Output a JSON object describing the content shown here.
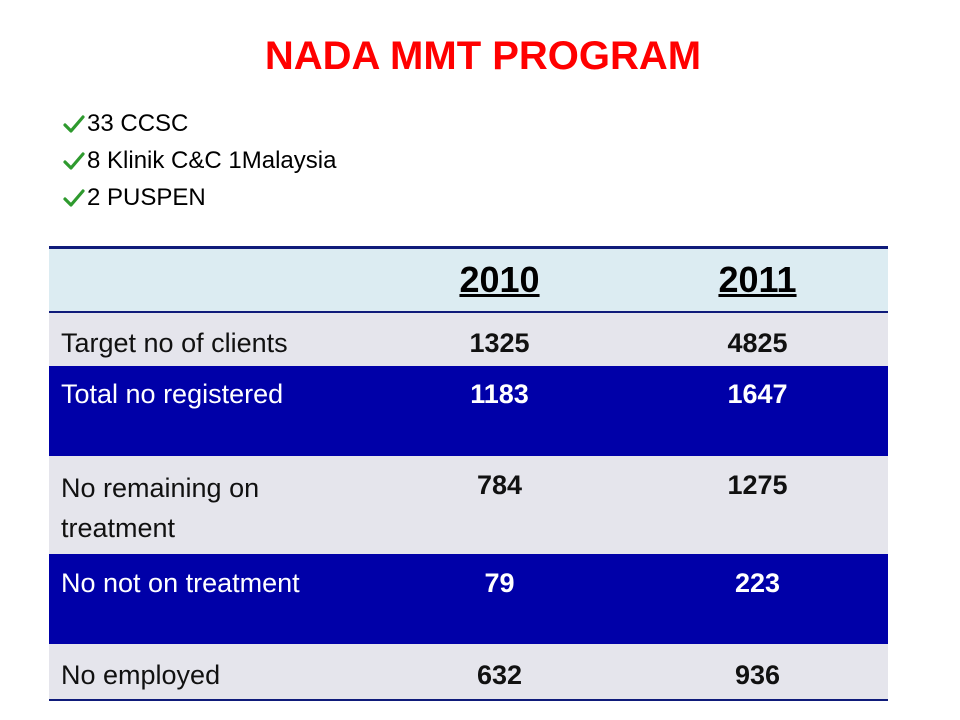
{
  "title": "NADA MMT PROGRAM",
  "bullets": [
    "33 CCSC",
    "8 Klinik C&C 1Malaysia",
    "2 PUSPEN"
  ],
  "table": {
    "header": [
      "",
      "2010",
      "2011"
    ],
    "rows": [
      {
        "label": "Target no of clients",
        "v2010": "1325",
        "v2011": "4825"
      },
      {
        "label": "Total no registered",
        "v2010": "1183",
        "v2011": "1647"
      },
      {
        "label": "No remaining on treatment",
        "v2010": "784",
        "v2011": "1275"
      },
      {
        "label": "No not on treatment",
        "v2010": "79",
        "v2011": "223"
      },
      {
        "label": "No employed",
        "v2010": "632",
        "v2011": "936"
      }
    ]
  },
  "colors": {
    "title": "#ff0000",
    "header_bg": "#dcecf2",
    "dark_row_bg": "#0000a8",
    "light_row_bg": "#e5e5ec",
    "check": "#2e9a2e"
  },
  "icons": {
    "bullet": "check-icon"
  }
}
